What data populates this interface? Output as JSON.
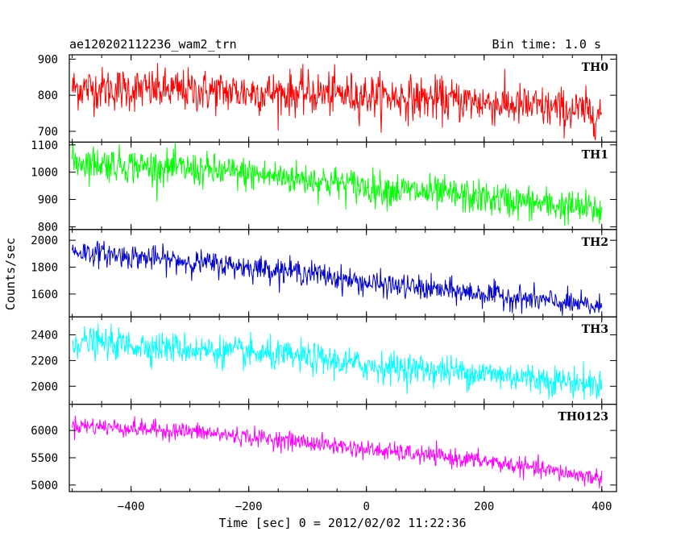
{
  "header": {
    "left_title": "ae120202112236_wam2_trn",
    "right_title": "Bin time: 1.0 s"
  },
  "chart_data": {
    "type": "line",
    "xlabel": "Time [sec] 0 = 2012/02/02 11:22:36",
    "ylabel": "Counts/sec",
    "xlim": [
      -505,
      425
    ],
    "x_ticks": [
      -400,
      -200,
      0,
      200,
      400
    ],
    "x_tick_labels": [
      "−400",
      "−200",
      "0",
      "200",
      "400"
    ],
    "x_range": [
      -500,
      400
    ],
    "grid": false,
    "panels": [
      {
        "name": "TH0",
        "color": "#ff0000",
        "ylim": [
          670,
          912
        ],
        "y_ticks": [
          700,
          800,
          900
        ],
        "y_tick_labels": [
          "700",
          "800",
          "900"
        ],
        "trend": [
          [
            -500,
            820
          ],
          [
            -300,
            812
          ],
          [
            -100,
            805
          ],
          [
            0,
            800
          ],
          [
            200,
            780
          ],
          [
            400,
            750
          ]
        ],
        "noise": 40
      },
      {
        "name": "TH1",
        "color": "#00ff00",
        "ylim": [
          790,
          1110
        ],
        "y_ticks": [
          800,
          900,
          1000,
          1100
        ],
        "y_tick_labels": [
          "800",
          "900",
          "1000",
          "1100"
        ],
        "trend": [
          [
            -500,
            1040
          ],
          [
            -300,
            1010
          ],
          [
            -100,
            975
          ],
          [
            0,
            945
          ],
          [
            200,
            905
          ],
          [
            400,
            860
          ]
        ],
        "noise": 42
      },
      {
        "name": "TH2",
        "color": "#0000cc",
        "ylim": [
          1430,
          2080
        ],
        "y_ticks": [
          1600,
          1800,
          2000
        ],
        "y_tick_labels": [
          "1600",
          "1800",
          "2000"
        ],
        "trend": [
          [
            -500,
            1920
          ],
          [
            -300,
            1840
          ],
          [
            -100,
            1760
          ],
          [
            0,
            1680
          ],
          [
            200,
            1600
          ],
          [
            400,
            1500
          ]
        ],
        "noise": 60
      },
      {
        "name": "TH3",
        "color": "#00ffff",
        "ylim": [
          1860,
          2540
        ],
        "y_ticks": [
          2000,
          2200,
          2400
        ],
        "y_tick_labels": [
          "2000",
          "2200",
          "2400"
        ],
        "trend": [
          [
            -500,
            2350
          ],
          [
            -300,
            2290
          ],
          [
            -100,
            2220
          ],
          [
            0,
            2160
          ],
          [
            200,
            2100
          ],
          [
            400,
            2010
          ]
        ],
        "noise": 80
      },
      {
        "name": "TH0123",
        "color": "#ff00ff",
        "ylim": [
          4880,
          6480
        ],
        "y_ticks": [
          5000,
          5500,
          6000
        ],
        "y_tick_labels": [
          "5000",
          "5500",
          "6000"
        ],
        "trend": [
          [
            -500,
            6100
          ],
          [
            -300,
            5980
          ],
          [
            -100,
            5780
          ],
          [
            0,
            5650
          ],
          [
            200,
            5440
          ],
          [
            400,
            5120
          ]
        ],
        "noise": 110
      }
    ]
  }
}
